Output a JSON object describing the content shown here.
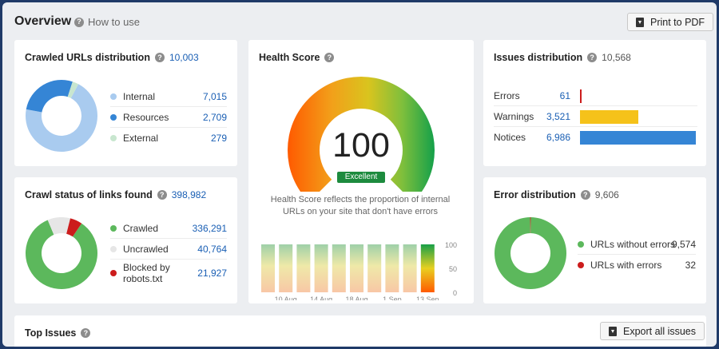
{
  "header": {
    "title": "Overview",
    "how_to": "How to use",
    "print_label": "Print to PDF"
  },
  "crawled_urls": {
    "title": "Crawled URLs distribution",
    "total": "10,003",
    "items": [
      {
        "label": "Internal",
        "value": "7,015",
        "num": 7015,
        "color": "#a9cbef"
      },
      {
        "label": "Resources",
        "value": "2,709",
        "num": 2709,
        "color": "#3585d5"
      },
      {
        "label": "External",
        "value": "279",
        "num": 279,
        "color": "#c8e6cf"
      }
    ]
  },
  "crawl_status": {
    "title": "Crawl status of links found",
    "total": "398,982",
    "items": [
      {
        "label": "Crawled",
        "value": "336,291",
        "num": 336291,
        "color": "#5cb85c"
      },
      {
        "label": "Uncrawled",
        "value": "40,764",
        "num": 40764,
        "color": "#e6e6e6"
      },
      {
        "label": "Blocked by",
        "label2": "robots.txt",
        "value": "21,927",
        "num": 21927,
        "color": "#cc1c1c"
      }
    ]
  },
  "health": {
    "title": "Health Score",
    "score": "100",
    "score_num": 100,
    "rating": "Excellent",
    "desc_line1": "Health Score reflects the proportion of internal",
    "desc_line2": "URLs on your site that don't have errors",
    "y_ticks": [
      "100",
      "50",
      "0"
    ],
    "x_ticks": [
      "10 Aug",
      "14 Aug",
      "18 Aug",
      "1 Sep",
      "13 Sep"
    ],
    "history": [
      100,
      100,
      100,
      100,
      100,
      100,
      100,
      100,
      100,
      100
    ]
  },
  "issues": {
    "title": "Issues distribution",
    "total": "10,568",
    "items": [
      {
        "label": "Errors",
        "value": "61",
        "num": 61,
        "color": "#cc1c1c"
      },
      {
        "label": "Warnings",
        "value": "3,521",
        "num": 3521,
        "color": "#f5c21a"
      },
      {
        "label": "Notices",
        "value": "6,986",
        "num": 6986,
        "color": "#3585d5"
      }
    ]
  },
  "errors": {
    "title": "Error distribution",
    "total": "9,606",
    "items": [
      {
        "label": "URLs without errors",
        "value": "9,574",
        "num": 9574,
        "color": "#5cb85c"
      },
      {
        "label": "URLs with errors",
        "value": "32",
        "num": 32,
        "color": "#cc1c1c"
      }
    ]
  },
  "top_issues": {
    "title": "Top Issues",
    "export_label": "Export all issues"
  }
}
